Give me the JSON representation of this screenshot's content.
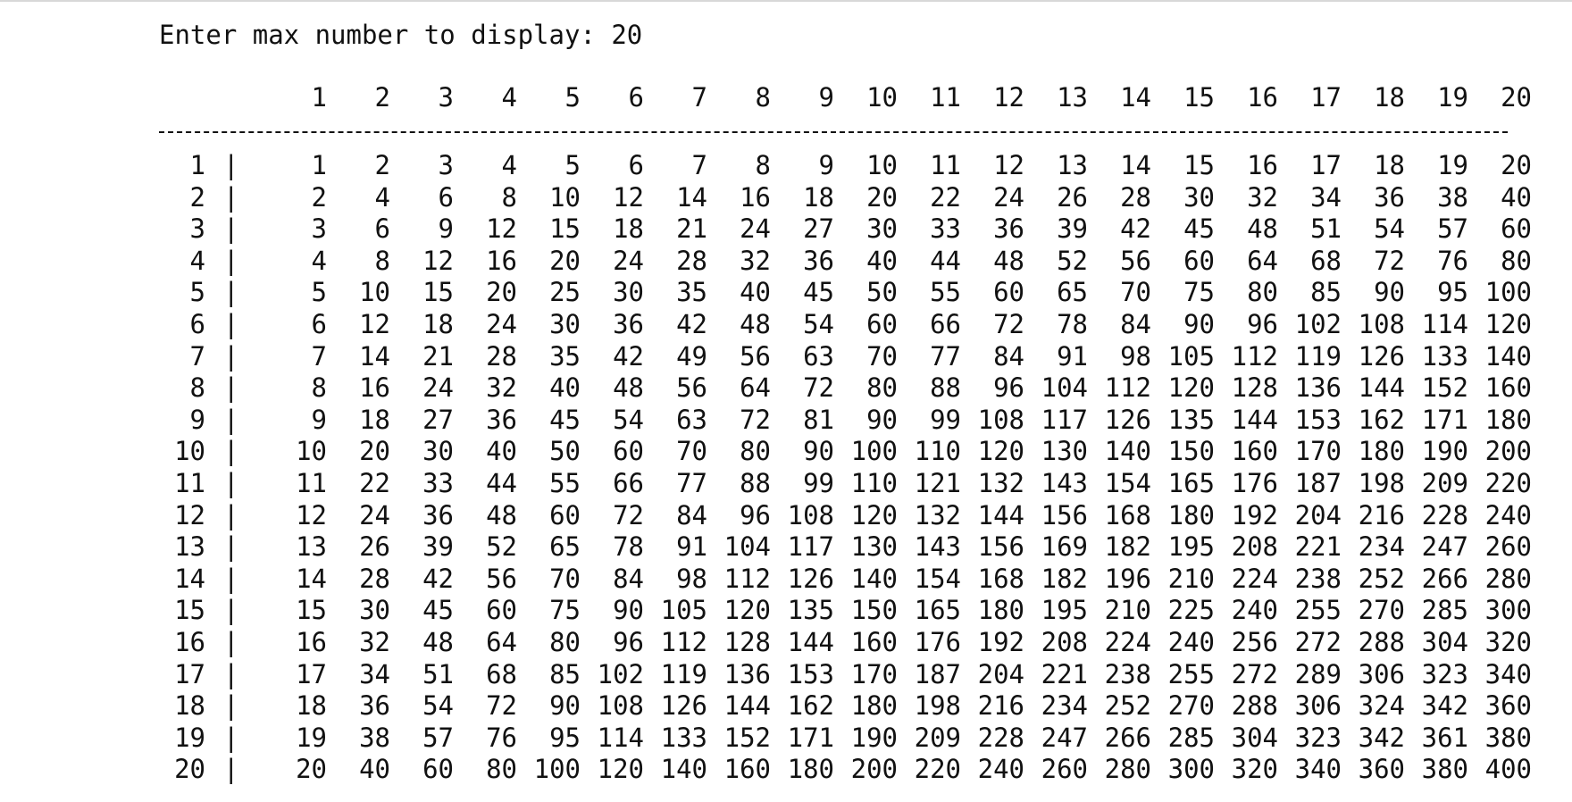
{
  "prompt": {
    "text": "Enter max number to display: ",
    "input": "20"
  },
  "table": {
    "header": [
      "1",
      "2",
      "3",
      "4",
      "5",
      "6",
      "7",
      "8",
      "9",
      "10",
      "11",
      "12",
      "13",
      "14",
      "15",
      "16",
      "17",
      "18",
      "19",
      "20"
    ],
    "row_separator": "|",
    "rows": [
      {
        "label": "1",
        "values": [
          1,
          2,
          3,
          4,
          5,
          6,
          7,
          8,
          9,
          10,
          11,
          12,
          13,
          14,
          15,
          16,
          17,
          18,
          19,
          20
        ]
      },
      {
        "label": "2",
        "values": [
          2,
          4,
          6,
          8,
          10,
          12,
          14,
          16,
          18,
          20,
          22,
          24,
          26,
          28,
          30,
          32,
          34,
          36,
          38,
          40
        ]
      },
      {
        "label": "3",
        "values": [
          3,
          6,
          9,
          12,
          15,
          18,
          21,
          24,
          27,
          30,
          33,
          36,
          39,
          42,
          45,
          48,
          51,
          54,
          57,
          60
        ]
      },
      {
        "label": "4",
        "values": [
          4,
          8,
          12,
          16,
          20,
          24,
          28,
          32,
          36,
          40,
          44,
          48,
          52,
          56,
          60,
          64,
          68,
          72,
          76,
          80
        ]
      },
      {
        "label": "5",
        "values": [
          5,
          10,
          15,
          20,
          25,
          30,
          35,
          40,
          45,
          50,
          55,
          60,
          65,
          70,
          75,
          80,
          85,
          90,
          95,
          100
        ]
      },
      {
        "label": "6",
        "values": [
          6,
          12,
          18,
          24,
          30,
          36,
          42,
          48,
          54,
          60,
          66,
          72,
          78,
          84,
          90,
          96,
          102,
          108,
          114,
          120
        ]
      },
      {
        "label": "7",
        "values": [
          7,
          14,
          21,
          28,
          35,
          42,
          49,
          56,
          63,
          70,
          77,
          84,
          91,
          98,
          105,
          112,
          119,
          126,
          133,
          140
        ]
      },
      {
        "label": "8",
        "values": [
          8,
          16,
          24,
          32,
          40,
          48,
          56,
          64,
          72,
          80,
          88,
          96,
          104,
          112,
          120,
          128,
          136,
          144,
          152,
          160
        ]
      },
      {
        "label": "9",
        "values": [
          9,
          18,
          27,
          36,
          45,
          54,
          63,
          72,
          81,
          90,
          99,
          108,
          117,
          126,
          135,
          144,
          153,
          162,
          171,
          180
        ]
      },
      {
        "label": "10",
        "values": [
          10,
          20,
          30,
          40,
          50,
          60,
          70,
          80,
          90,
          100,
          110,
          120,
          130,
          140,
          150,
          160,
          170,
          180,
          190,
          200
        ]
      },
      {
        "label": "11",
        "values": [
          11,
          22,
          33,
          44,
          55,
          66,
          77,
          88,
          99,
          110,
          121,
          132,
          143,
          154,
          165,
          176,
          187,
          198,
          209,
          220
        ]
      },
      {
        "label": "12",
        "values": [
          12,
          24,
          36,
          48,
          60,
          72,
          84,
          96,
          108,
          120,
          132,
          144,
          156,
          168,
          180,
          192,
          204,
          216,
          228,
          240
        ]
      },
      {
        "label": "13",
        "values": [
          13,
          26,
          39,
          52,
          65,
          78,
          91,
          104,
          117,
          130,
          143,
          156,
          169,
          182,
          195,
          208,
          221,
          234,
          247,
          260
        ]
      },
      {
        "label": "14",
        "values": [
          14,
          28,
          42,
          56,
          70,
          84,
          98,
          112,
          126,
          140,
          154,
          168,
          182,
          196,
          210,
          224,
          238,
          252,
          266,
          280
        ]
      },
      {
        "label": "15",
        "values": [
          15,
          30,
          45,
          60,
          75,
          90,
          105,
          120,
          135,
          150,
          165,
          180,
          195,
          210,
          225,
          240,
          255,
          270,
          285,
          300
        ]
      },
      {
        "label": "16",
        "values": [
          16,
          32,
          48,
          64,
          80,
          96,
          112,
          128,
          144,
          160,
          176,
          192,
          208,
          224,
          240,
          256,
          272,
          288,
          304,
          320
        ]
      },
      {
        "label": "17",
        "values": [
          17,
          34,
          51,
          68,
          85,
          102,
          119,
          136,
          153,
          170,
          187,
          204,
          221,
          238,
          255,
          272,
          289,
          306,
          323,
          340
        ]
      },
      {
        "label": "18",
        "values": [
          18,
          36,
          54,
          72,
          90,
          108,
          126,
          144,
          162,
          180,
          198,
          216,
          234,
          252,
          270,
          288,
          306,
          324,
          342,
          360
        ]
      },
      {
        "label": "19",
        "values": [
          19,
          38,
          57,
          76,
          95,
          114,
          133,
          152,
          171,
          190,
          209,
          228,
          247,
          266,
          285,
          304,
          323,
          342,
          361,
          380
        ]
      },
      {
        "label": "20",
        "values": [
          20,
          40,
          60,
          80,
          100,
          120,
          140,
          160,
          180,
          200,
          220,
          240,
          260,
          280,
          300,
          320,
          340,
          360,
          380,
          400
        ]
      }
    ]
  }
}
